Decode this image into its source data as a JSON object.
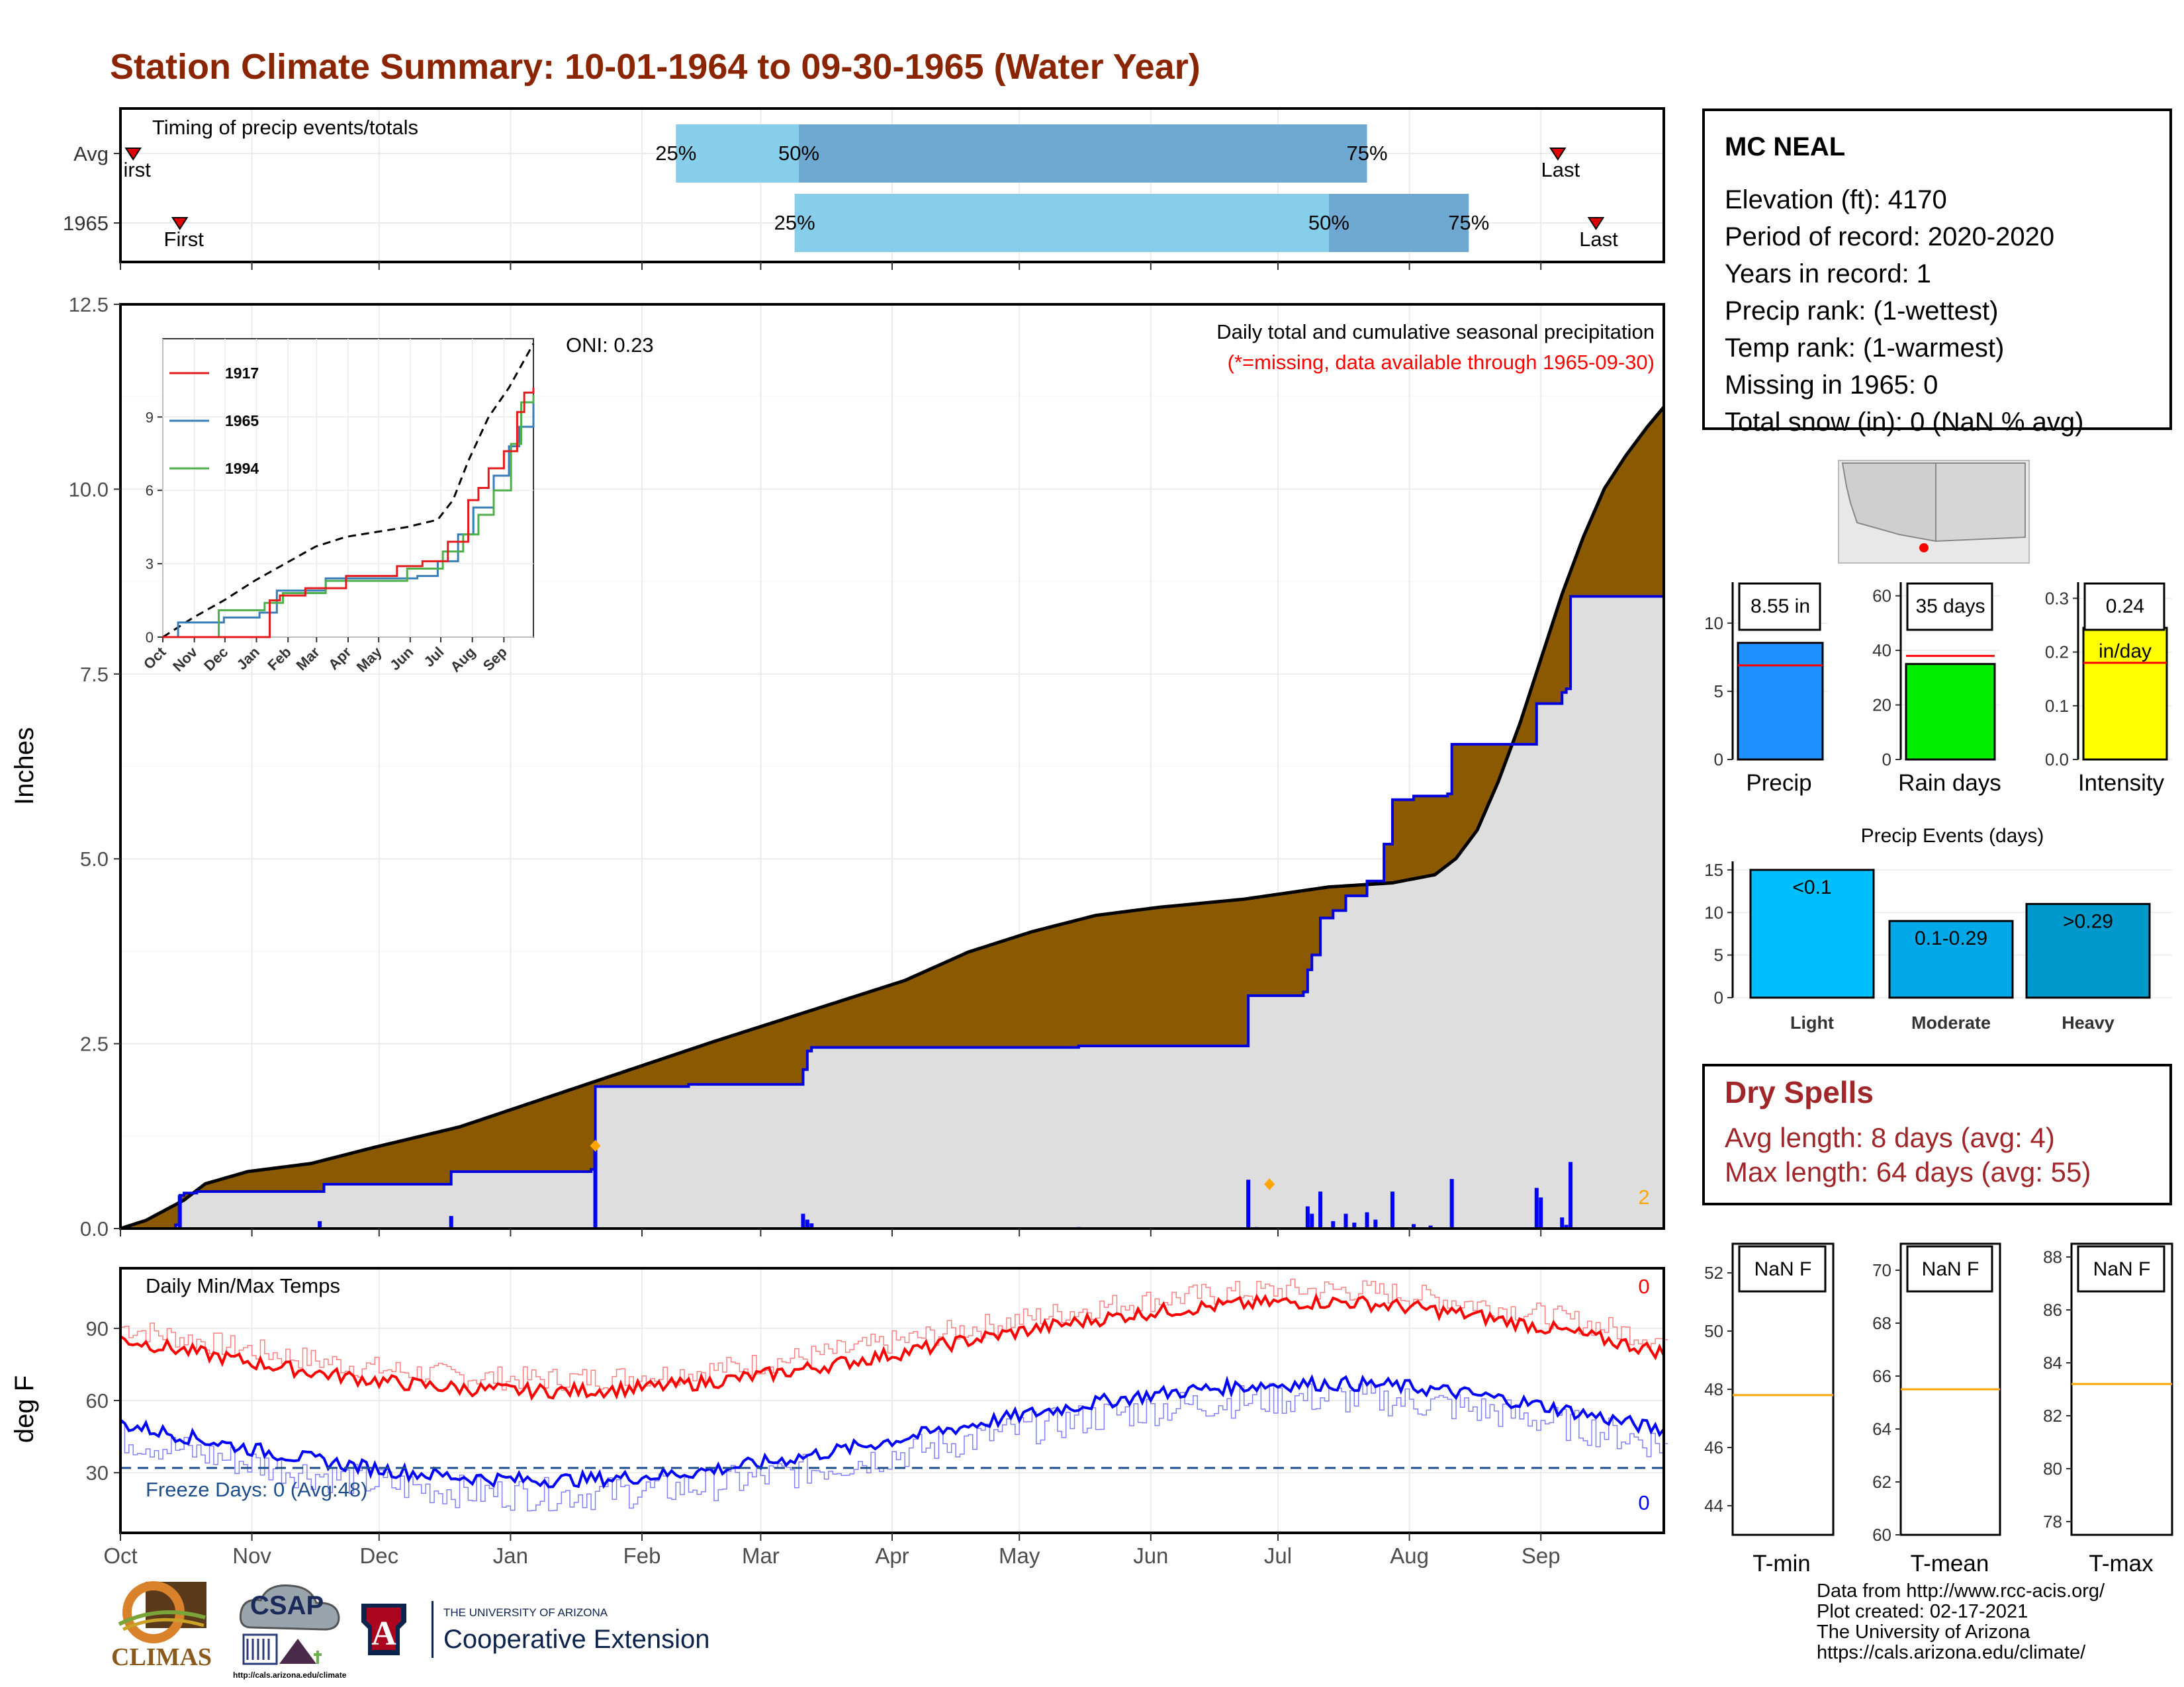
{
  "title": "Station Climate Summary: 10-01-1964 to 09-30-1965 (Water Year)",
  "colors": {
    "title": "#8b2500",
    "cumulative_fill": "#8b5a00",
    "avg_fill": "#dedede",
    "daily_bars": "#0000ff",
    "timing_q1": "#87ceeb",
    "timing_q2": "#6fa8d0",
    "max_temp": "#ff0000",
    "min_temp": "#0000ff",
    "freeze_line": "#1f4e8c",
    "precip_bar": "#1e90ff",
    "raindays_bar": "#00ee00",
    "intensity_bar": "#ffff00",
    "events_light": "#00bfff",
    "events_moderate": "#00a8e8",
    "events_heavy": "#0099cc",
    "dry_spells": "#a0262a"
  },
  "timing_panel": {
    "label": "Timing of precip events/totals",
    "rows": [
      {
        "name": "Avg",
        "first": "irst",
        "last": "Last",
        "q25": "25%",
        "q50": "50%",
        "q75": "75%",
        "first_doy": 3,
        "q25_doy": 131,
        "q50_doy": 160,
        "q75_doy": 294,
        "last_doy": 339
      },
      {
        "name": "1965",
        "first": "First",
        "last": "Last",
        "q25": "25%",
        "q50": "50%",
        "q75": "75%",
        "first_doy": 14,
        "q25_doy": 159,
        "q50_doy": 285,
        "q75_doy": 318,
        "last_doy": 348
      }
    ]
  },
  "main_panel": {
    "ylabel": "Inches",
    "yticks": [
      "0.0",
      "2.5",
      "5.0",
      "7.5",
      "10.0",
      "12.5"
    ],
    "ylim": [
      0,
      12.5
    ],
    "header": "Daily total and cumulative seasonal precipitation",
    "subheader": "(*=missing, data available through 1965-09-30)",
    "oni": "ONI: 0.23",
    "corner_count": "2"
  },
  "inset": {
    "yticks": [
      "0",
      "3",
      "6",
      "9"
    ],
    "xticks": [
      "Oct",
      "Nov",
      "Dec",
      "Jan",
      "Feb",
      "Mar",
      "Apr",
      "May",
      "Jun",
      "Jul",
      "Aug",
      "Sep"
    ],
    "legend": [
      "1917",
      "1965",
      "1994"
    ]
  },
  "temp_panel": {
    "ylabel": "deg F",
    "label": "Daily Min/Max Temps",
    "yticks": [
      "30",
      "60",
      "90"
    ],
    "freeze": "Freeze Days: 0 (Avg:48)",
    "max_count": "0",
    "min_count": "0",
    "xticks": [
      "Oct",
      "Nov",
      "Dec",
      "Jan",
      "Feb",
      "Mar",
      "Apr",
      "May",
      "Jun",
      "Jul",
      "Aug",
      "Sep"
    ]
  },
  "station": {
    "name": "MC NEAL",
    "lines": [
      "Elevation (ft): 4170",
      "Period of record: 2020-2020",
      "Years in record: 1",
      "Precip rank:  (1-wettest)",
      "Temp rank:  (1-warmest)",
      "Missing in 1965: 0",
      "Total snow (in): 0 (NaN % avg)"
    ]
  },
  "summary_bars": [
    {
      "label": "Precip",
      "value_text": "8.55 in",
      "value": 8.55,
      "avg": 6.9,
      "ymax": 13,
      "yticks": [
        "0",
        "5",
        "10"
      ]
    },
    {
      "label": "Rain days",
      "value_text": "35 days",
      "value": 35,
      "avg": 38,
      "ymax": 65,
      "yticks": [
        "0",
        "20",
        "40",
        "60"
      ]
    },
    {
      "label": "Intensity",
      "value_text": "0.24",
      "value_text2": "in/day",
      "value": 0.245,
      "avg": 0.18,
      "ymax": 0.33,
      "yticks": [
        "0.0",
        "0.1",
        "0.2",
        "0.3"
      ]
    }
  ],
  "events": {
    "title": "Precip Events (days)",
    "yticks": [
      "0",
      "5",
      "10",
      "15"
    ],
    "ymax": 16,
    "bars": [
      {
        "label": "Light",
        "text": "<0.1",
        "value": 15
      },
      {
        "label": "Moderate",
        "text": "0.1-0.29",
        "value": 9
      },
      {
        "label": "Heavy",
        "text": ">0.29",
        "value": 11
      }
    ]
  },
  "dry_spells": {
    "title": "Dry Spells",
    "avg_line": "Avg length: 8 days (avg: 4)",
    "max_line": "Max length: 64 days (avg: 55)"
  },
  "temp_summary": [
    {
      "label": "T-min",
      "text": "NaN F",
      "yticks": [
        "44",
        "46",
        "48",
        "50",
        "52"
      ],
      "ymin": 43,
      "ymax": 53,
      "avg": 47.8
    },
    {
      "label": "T-mean",
      "text": "NaN F",
      "yticks": [
        "60",
        "62",
        "64",
        "66",
        "68",
        "70"
      ],
      "ymin": 60,
      "ymax": 71,
      "avg": 65.5
    },
    {
      "label": "T-max",
      "text": "NaN F",
      "yticks": [
        "78",
        "80",
        "82",
        "84",
        "86",
        "88"
      ],
      "ymin": 77.5,
      "ymax": 88.5,
      "avg": 83.2
    }
  ],
  "credits": [
    "Data from http://www.rcc-acis.org/",
    "Plot created: 02-17-2021",
    "The University of Arizona",
    "https://cals.arizona.edu/climate/"
  ],
  "logos": {
    "climas": "CLIMAS",
    "csap": "CSAP",
    "csap_url": "http://cals.arizona.edu/climate",
    "ua_small": "THE UNIVERSITY OF ARIZONA",
    "ua_big": "Cooperative Extension"
  }
}
